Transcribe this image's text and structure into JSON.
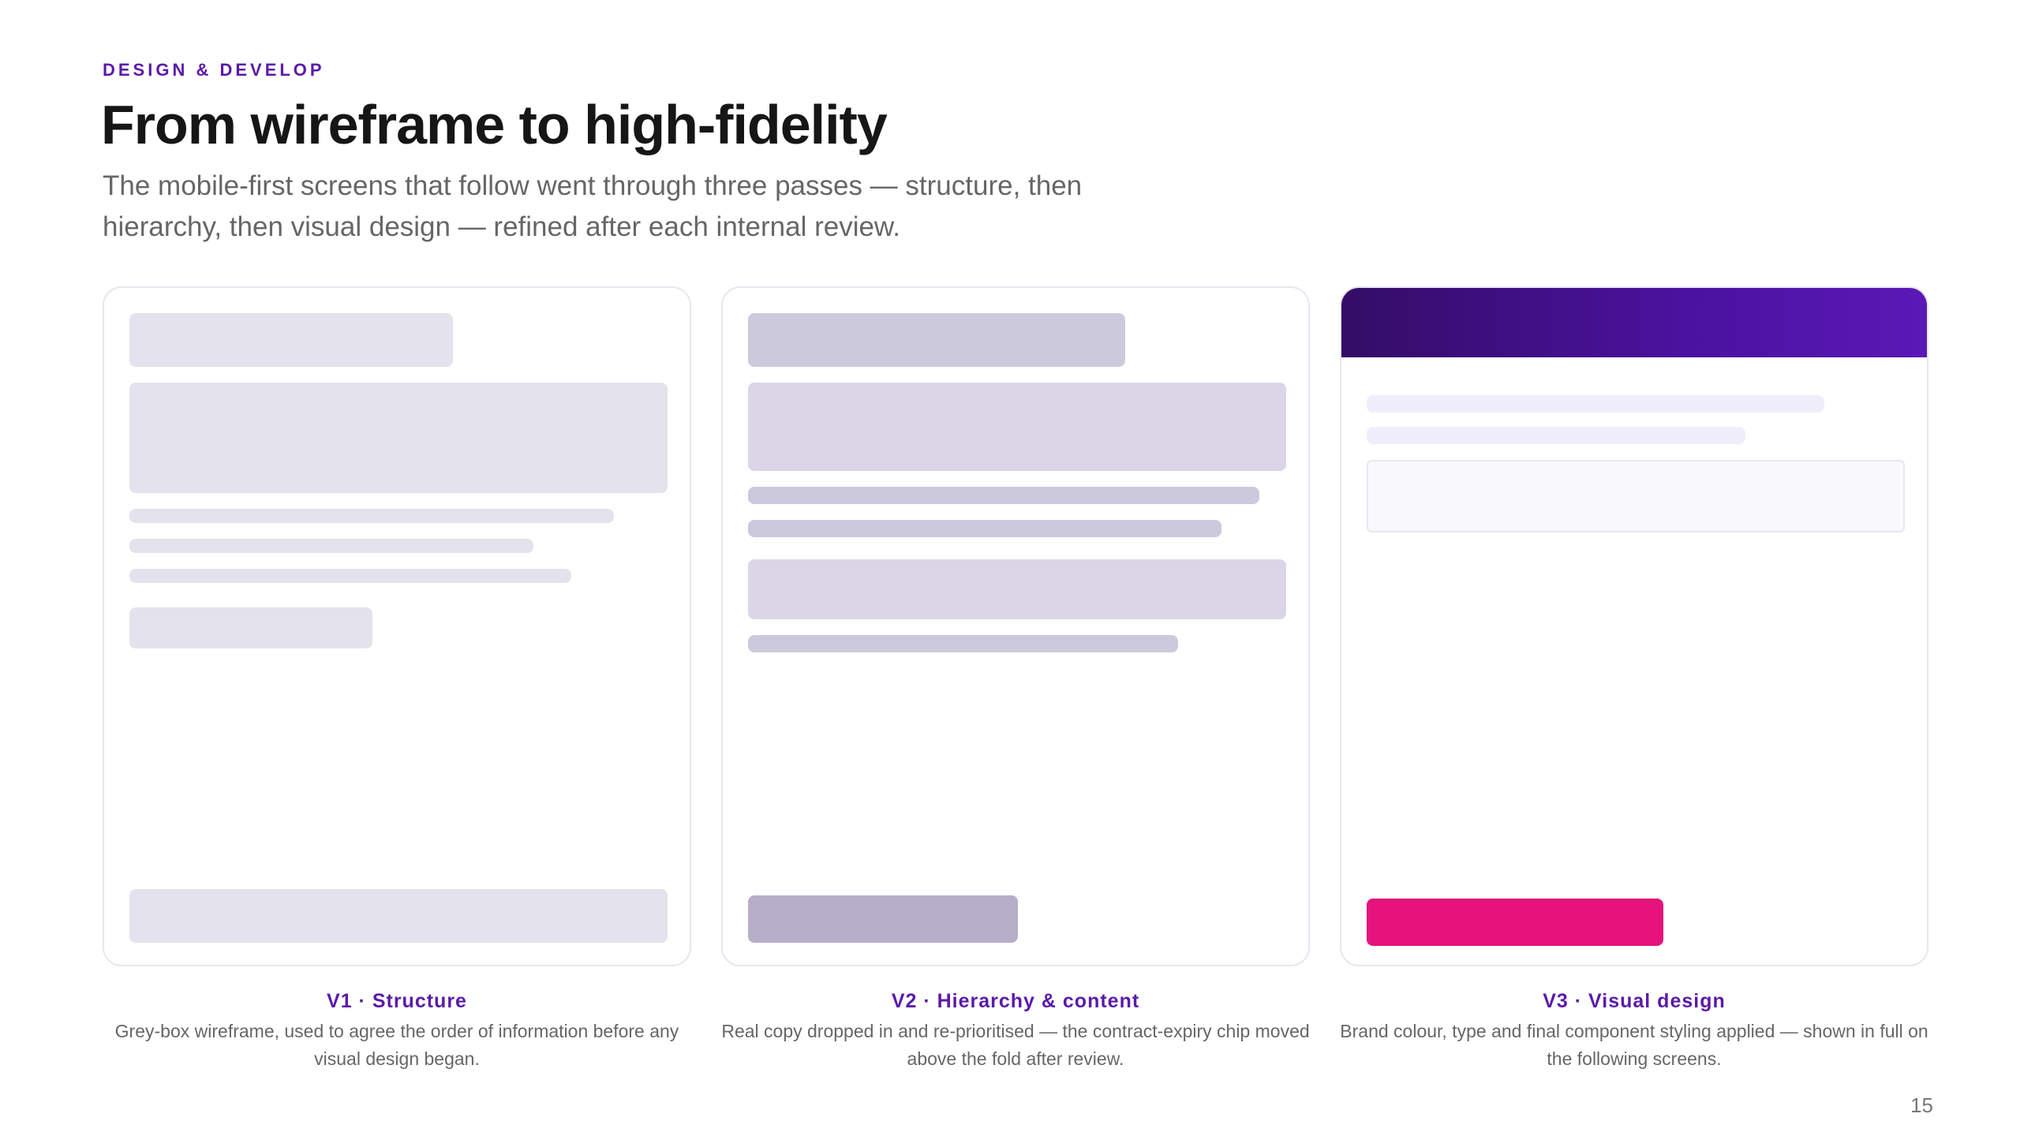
{
  "header": {
    "eyebrow": "DESIGN & DEVELOP",
    "title": "From wireframe to high-fidelity",
    "subtitle": "The mobile-first screens that follow went through three passes — structure, then hierarchy, then visual design — refined after each internal review."
  },
  "versions": [
    {
      "title": "V1 · Structure",
      "description": "Grey-box wireframe, used to agree the order of information before any visual design began."
    },
    {
      "title": "V2 · Hierarchy & content",
      "description": "Real copy dropped in and re-prioritised — the contract-expiry chip moved above the fold after review."
    },
    {
      "title": "V3 · Visual design",
      "description": "Brand colour, type and final component styling applied — shown in full on the following screens."
    }
  ],
  "colors": {
    "accent": "#5b1aa8",
    "header_gradient_start": "#330d66",
    "header_gradient_end": "#5a19b6",
    "cta": "#e5137a",
    "grey_box": "#e4e2ec",
    "lavender_box": "#cdc9dc"
  },
  "footer": {
    "page_number": "15"
  }
}
